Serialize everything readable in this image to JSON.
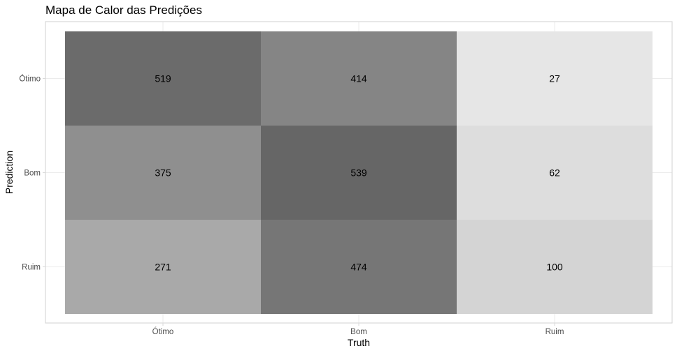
{
  "chart_data": {
    "type": "heatmap",
    "title": "Mapa de Calor das Predições",
    "xlabel": "Truth",
    "ylabel": "Prediction",
    "x_categories": [
      "Ótimo",
      "Bom",
      "Ruim"
    ],
    "y_categories": [
      "Ótimo",
      "Bom",
      "Ruim"
    ],
    "values": [
      [
        519,
        414,
        27
      ],
      [
        375,
        539,
        62
      ],
      [
        271,
        474,
        100
      ]
    ],
    "color_low": "#e6e6e6",
    "color_high": "#666666",
    "grid": true,
    "legend": "none"
  }
}
